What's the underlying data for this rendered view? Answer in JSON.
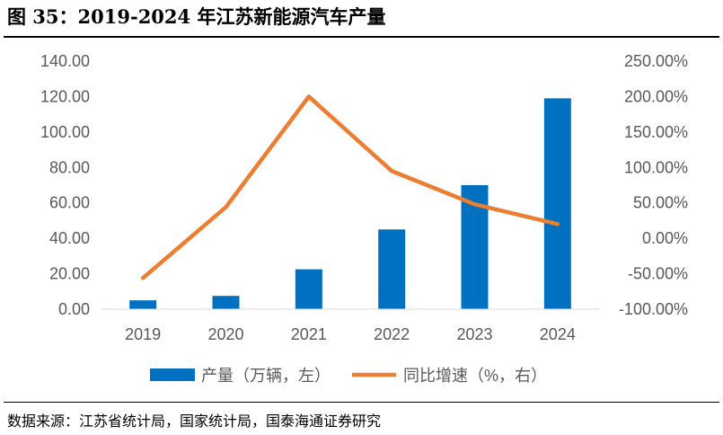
{
  "title": "图 35：2019-2024 年江苏新能源汽车产量",
  "source": "数据来源：江苏省统计局，国家统计局，国泰海通证券研究",
  "chart_data": {
    "type": "bar+line",
    "categories": [
      "2019",
      "2020",
      "2021",
      "2022",
      "2023",
      "2024"
    ],
    "series": [
      {
        "name": "产量（万辆，左）",
        "type": "bar",
        "axis": "left",
        "color": "#0070C0",
        "values": [
          5.0,
          7.5,
          22.5,
          45.0,
          70.0,
          119.0
        ]
      },
      {
        "name": "同比增速（%，右）",
        "type": "line",
        "axis": "right",
        "color": "#ED7D31",
        "values": [
          -56.0,
          44.0,
          200.0,
          95.0,
          48.0,
          20.0
        ]
      }
    ],
    "y_left": {
      "min": 0,
      "max": 140,
      "step": 20,
      "tick_labels": [
        "0.00",
        "20.00",
        "40.00",
        "60.00",
        "80.00",
        "100.00",
        "120.00",
        "140.00"
      ]
    },
    "y_right": {
      "min": -100,
      "max": 250,
      "step": 50,
      "tick_labels": [
        "-100.00%",
        "-50.00%",
        "0.00%",
        "50.00%",
        "100.00%",
        "150.00%",
        "200.00%",
        "250.00%"
      ]
    },
    "grid": false,
    "legend_position": "bottom"
  }
}
